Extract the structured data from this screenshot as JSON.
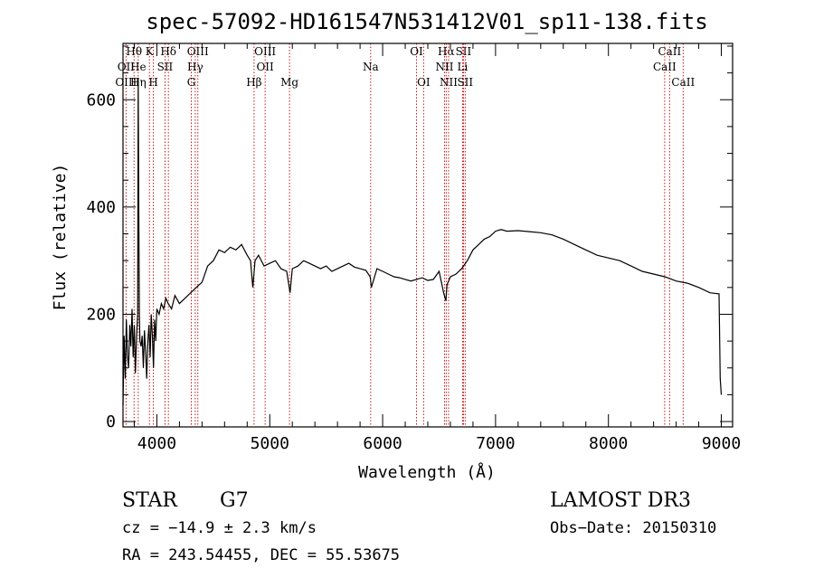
{
  "chart_data": {
    "type": "line",
    "title": "spec-57092-HD161547N531412V01_sp11-138.fits",
    "xlabel": "Wavelength (Å)",
    "ylabel": "Flux (relative)",
    "xlim": [
      3700,
      9100
    ],
    "ylim": [
      -10,
      705
    ],
    "x_ticks": [
      4000,
      5000,
      6000,
      7000,
      8000,
      9000
    ],
    "y_ticks": [
      0,
      200,
      400,
      600
    ],
    "grid": false,
    "series": [
      {
        "x": [
          3700,
          3710,
          3720,
          3730,
          3740,
          3750,
          3760,
          3770,
          3780,
          3790,
          3800,
          3810,
          3820,
          3830,
          3835,
          3840,
          3845,
          3850,
          3860,
          3870,
          3880,
          3890,
          3900,
          3910,
          3920,
          3930,
          3940,
          3950,
          3960,
          3970,
          3980,
          3990,
          4000,
          4020,
          4040,
          4060,
          4080,
          4100,
          4130,
          4160,
          4200,
          4250,
          4300,
          4350,
          4400,
          4450,
          4500,
          4550,
          4600,
          4650,
          4700,
          4750,
          4800,
          4830,
          4850,
          4870,
          4900,
          4950,
          5000,
          5050,
          5100,
          5150,
          5180,
          5200,
          5250,
          5300,
          5350,
          5400,
          5450,
          5500,
          5550,
          5600,
          5650,
          5700,
          5750,
          5800,
          5850,
          5890,
          5900,
          5950,
          6000,
          6050,
          6100,
          6150,
          6200,
          6250,
          6300,
          6350,
          6400,
          6450,
          6500,
          6540,
          6560,
          6570,
          6600,
          6650,
          6700,
          6750,
          6800,
          6850,
          6900,
          6950,
          7000,
          7050,
          7100,
          7200,
          7300,
          7400,
          7500,
          7600,
          7700,
          7800,
          7900,
          8000,
          8100,
          8200,
          8300,
          8400,
          8500,
          8600,
          8700,
          8800,
          8900,
          8980,
          8990,
          9000
        ],
        "values": [
          30,
          160,
          80,
          190,
          120,
          100,
          180,
          140,
          210,
          120,
          180,
          90,
          160,
          200,
          640,
          380,
          200,
          150,
          140,
          160,
          100,
          170,
          130,
          80,
          150,
          180,
          120,
          200,
          160,
          100,
          190,
          150,
          210,
          200,
          220,
          210,
          230,
          220,
          210,
          235,
          220,
          230,
          240,
          250,
          260,
          290,
          300,
          320,
          315,
          325,
          320,
          330,
          310,
          300,
          250,
          300,
          310,
          290,
          295,
          300,
          285,
          280,
          240,
          285,
          290,
          300,
          295,
          290,
          285,
          290,
          280,
          285,
          290,
          295,
          288,
          285,
          282,
          270,
          250,
          285,
          280,
          275,
          270,
          268,
          265,
          262,
          265,
          268,
          263,
          265,
          280,
          240,
          225,
          255,
          270,
          275,
          285,
          300,
          320,
          330,
          340,
          345,
          355,
          358,
          355,
          356,
          354,
          352,
          348,
          340,
          330,
          320,
          310,
          305,
          300,
          290,
          280,
          275,
          270,
          262,
          258,
          250,
          240,
          238,
          80,
          50
        ]
      }
    ],
    "emission_lines": [
      {
        "label": "Hθ",
        "x": 3798,
        "row": 1
      },
      {
        "label": "OII",
        "x": 3727,
        "row": 2
      },
      {
        "label": "OIII",
        "x": 3727,
        "row": 3
      },
      {
        "label": "He",
        "x": 3835,
        "row": 2
      },
      {
        "label": "Hη",
        "x": 3835,
        "row": 3
      },
      {
        "label": "K",
        "x": 3934,
        "row": 1
      },
      {
        "label": "H",
        "x": 3969,
        "row": 3
      },
      {
        "label": "Hδ",
        "x": 4102,
        "row": 1
      },
      {
        "label": "SII",
        "x": 4072,
        "row": 2
      },
      {
        "label": "OIII",
        "x": 4363,
        "row": 1
      },
      {
        "label": "Hγ",
        "x": 4340,
        "row": 2
      },
      {
        "label": "G",
        "x": 4305,
        "row": 3
      },
      {
        "label": "Hβ",
        "x": 4861,
        "row": 3
      },
      {
        "label": "OIII",
        "x": 4959,
        "row": 1
      },
      {
        "label": "OII",
        "x": 4959,
        "row": 2
      },
      {
        "label": "Mg",
        "x": 5175,
        "row": 3
      },
      {
        "label": "Na",
        "x": 5894,
        "row": 2
      },
      {
        "label": "OI",
        "x": 6300,
        "row": 1
      },
      {
        "label": "OI",
        "x": 6363,
        "row": 3
      },
      {
        "label": "Hα",
        "x": 6563,
        "row": 1
      },
      {
        "label": "SII",
        "x": 6716,
        "row": 1
      },
      {
        "label": "NII",
        "x": 6548,
        "row": 2
      },
      {
        "label": "Li",
        "x": 6708,
        "row": 2
      },
      {
        "label": "NII",
        "x": 6584,
        "row": 3
      },
      {
        "label": "SII",
        "x": 6731,
        "row": 3
      },
      {
        "label": "CaII",
        "x": 8542,
        "row": 1
      },
      {
        "label": "CaII",
        "x": 8498,
        "row": 2
      },
      {
        "label": "CaII",
        "x": 8662,
        "row": 3
      }
    ]
  },
  "info": {
    "object_class": "STAR",
    "subclass": "G7",
    "survey": "LAMOST DR3",
    "redshift": "cz = −14.9 ± 2.3 km/s",
    "obs_date": "Obs−Date: 20150310",
    "coords": "RA = 243.54455, DEC =  55.53675"
  },
  "colors": {
    "spectrum": "#000000",
    "line_markers": "#c00000"
  }
}
